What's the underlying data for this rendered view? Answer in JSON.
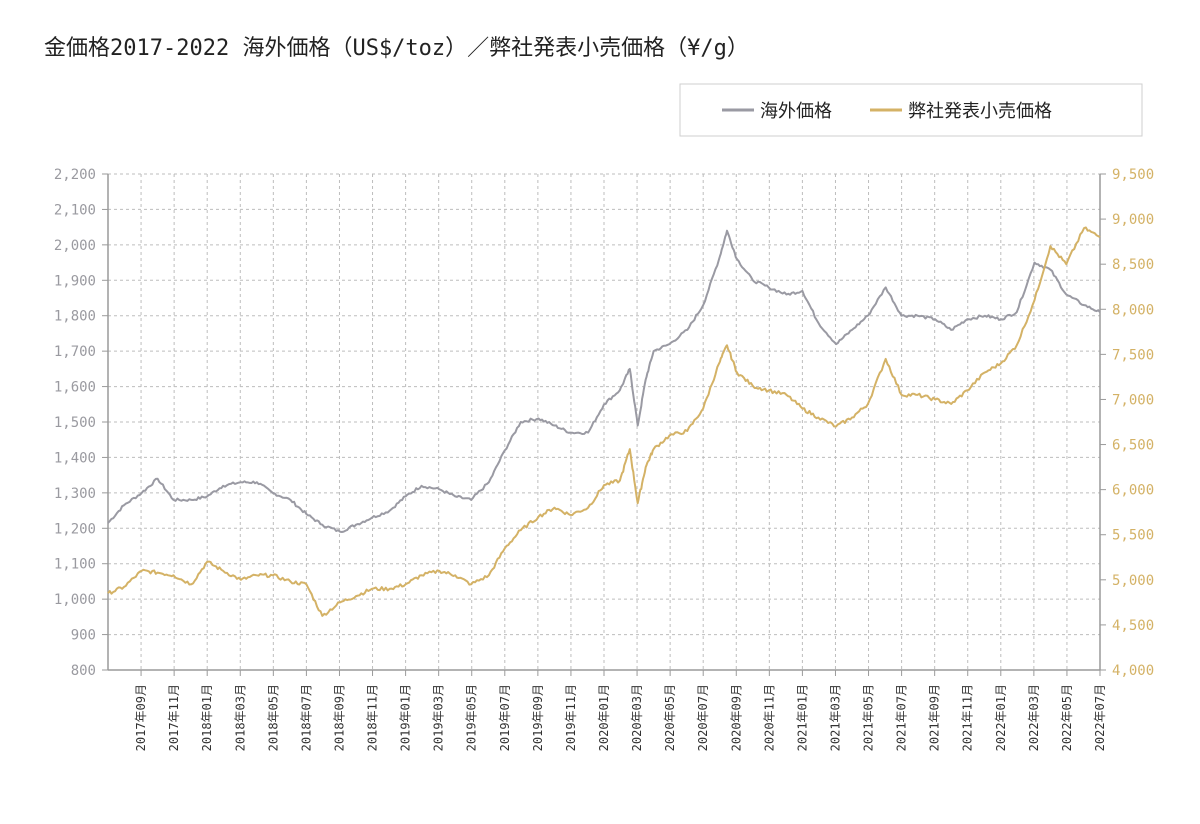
{
  "page": {
    "title": "金価格2017-2022 海外価格（US$/toz）／弊社発表小売価格（¥/g）"
  },
  "colors": {
    "overseas": "#9a9aa3",
    "retail": "#d4b266",
    "grid": "#bdbdbd",
    "axis": "#9a9a9a",
    "left_tick": "#9a9aa0",
    "right_tick": "#d4b266"
  },
  "chart_data": {
    "type": "line",
    "title": "金価格2017-2022 海外価格（US$/toz）／弊社発表小売価格（¥/g）",
    "legend_position": "top-right",
    "grid": true,
    "x_range": [
      "2017-07",
      "2022-07"
    ],
    "categories": [
      "2017年09月",
      "2017年11月",
      "2018年01月",
      "2018年03月",
      "2018年05月",
      "2018年07月",
      "2018年09月",
      "2018年11月",
      "2019年01月",
      "2019年03月",
      "2019年05月",
      "2019年07月",
      "2019年09月",
      "2019年11月",
      "2020年01月",
      "2020年03月",
      "2020年05月",
      "2020年07月",
      "2020年09月",
      "2020年11月",
      "2021年01月",
      "2021年03月",
      "2021年05月",
      "2021年07月",
      "2021年09月",
      "2021年11月",
      "2022年01月",
      "2022年03月",
      "2022年05月",
      "2022年07月"
    ],
    "y_left": {
      "min": 800,
      "max": 2200,
      "step": 100,
      "ticks": [
        "800",
        "900",
        "1,000",
        "1,100",
        "1,200",
        "1,300",
        "1,400",
        "1,500",
        "1,600",
        "1,700",
        "1,800",
        "1,900",
        "2,000",
        "2,100",
        "2,200"
      ]
    },
    "y_right": {
      "min": 4000,
      "max": 9500,
      "step": 500,
      "ticks": [
        "4,000",
        "4,500",
        "5,000",
        "5,500",
        "6,000",
        "6,500",
        "7,000",
        "7,500",
        "8,000",
        "8,500",
        "9,000",
        "9,500"
      ]
    },
    "series": [
      {
        "name": "海外価格",
        "axis": "left",
        "x": [
          2017.5,
          2017.58,
          2017.67,
          2017.75,
          2017.83,
          2017.92,
          2018.0,
          2018.08,
          2018.17,
          2018.25,
          2018.33,
          2018.42,
          2018.5,
          2018.58,
          2018.67,
          2018.75,
          2018.83,
          2018.92,
          2019.0,
          2019.08,
          2019.17,
          2019.25,
          2019.33,
          2019.42,
          2019.5,
          2019.58,
          2019.67,
          2019.75,
          2019.83,
          2019.92,
          2020.0,
          2020.08,
          2020.13,
          2020.17,
          2020.21,
          2020.25,
          2020.33,
          2020.42,
          2020.5,
          2020.58,
          2020.62,
          2020.67,
          2020.75,
          2020.83,
          2020.92,
          2021.0,
          2021.08,
          2021.17,
          2021.25,
          2021.33,
          2021.42,
          2021.5,
          2021.58,
          2021.67,
          2021.75,
          2021.83,
          2021.92,
          2022.0,
          2022.08,
          2022.17,
          2022.25,
          2022.33,
          2022.42,
          2022.5
        ],
        "values": [
          1215,
          1265,
          1300,
          1340,
          1280,
          1280,
          1290,
          1320,
          1330,
          1330,
          1300,
          1280,
          1240,
          1210,
          1190,
          1210,
          1230,
          1250,
          1290,
          1320,
          1310,
          1290,
          1280,
          1330,
          1420,
          1500,
          1510,
          1490,
          1470,
          1470,
          1550,
          1590,
          1650,
          1490,
          1620,
          1700,
          1720,
          1760,
          1830,
          1960,
          2040,
          1960,
          1900,
          1880,
          1860,
          1870,
          1780,
          1720,
          1760,
          1800,
          1880,
          1800,
          1800,
          1790,
          1760,
          1790,
          1800,
          1790,
          1810,
          1950,
          1930,
          1860,
          1830,
          1810
        ]
      },
      {
        "name": "弊社発表小売価格",
        "axis": "right",
        "x": [
          2017.5,
          2017.58,
          2017.67,
          2017.75,
          2017.83,
          2017.92,
          2018.0,
          2018.08,
          2018.17,
          2018.25,
          2018.33,
          2018.42,
          2018.5,
          2018.58,
          2018.67,
          2018.75,
          2018.83,
          2018.92,
          2019.0,
          2019.08,
          2019.17,
          2019.25,
          2019.33,
          2019.42,
          2019.5,
          2019.58,
          2019.67,
          2019.75,
          2019.83,
          2019.92,
          2020.0,
          2020.08,
          2020.13,
          2020.17,
          2020.21,
          2020.25,
          2020.33,
          2020.42,
          2020.5,
          2020.58,
          2020.62,
          2020.67,
          2020.75,
          2020.83,
          2020.92,
          2021.0,
          2021.08,
          2021.17,
          2021.25,
          2021.33,
          2021.42,
          2021.5,
          2021.58,
          2021.67,
          2021.75,
          2021.83,
          2021.92,
          2022.0,
          2022.08,
          2022.17,
          2022.25,
          2022.33,
          2022.42,
          2022.5
        ],
        "values": [
          4850,
          4920,
          5100,
          5080,
          5050,
          4950,
          5200,
          5100,
          5000,
          5050,
          5050,
          4980,
          4950,
          4600,
          4750,
          4820,
          4900,
          4900,
          4950,
          5050,
          5100,
          5050,
          4950,
          5050,
          5350,
          5550,
          5700,
          5800,
          5720,
          5800,
          6050,
          6100,
          6450,
          5850,
          6250,
          6450,
          6600,
          6650,
          6900,
          7400,
          7600,
          7300,
          7150,
          7100,
          7050,
          6900,
          6800,
          6700,
          6800,
          6950,
          7450,
          7050,
          7050,
          7000,
          6950,
          7100,
          7300,
          7400,
          7600,
          8100,
          8700,
          8500,
          8900,
          8800
        ]
      }
    ]
  }
}
